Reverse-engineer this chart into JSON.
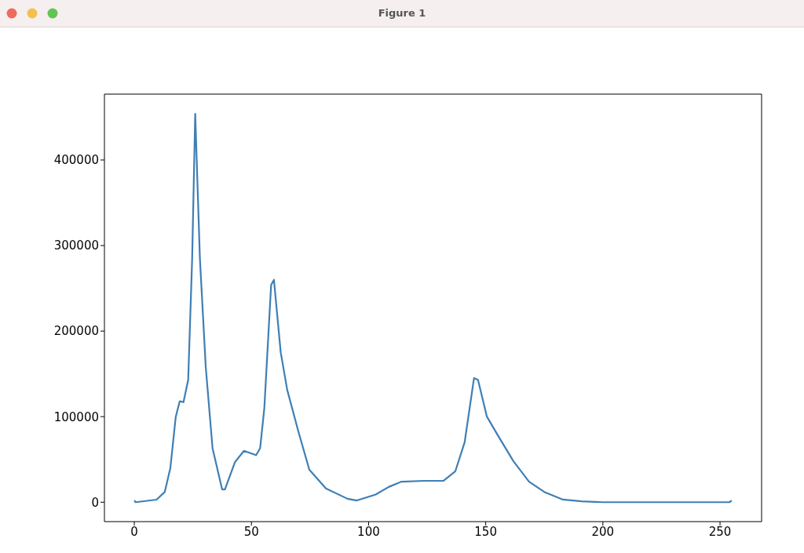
{
  "chart_data": {
    "type": "line",
    "title": "Figure 1",
    "x": [
      0,
      0.6,
      9.5,
      13,
      15.4,
      17.7,
      19.4,
      21,
      23,
      24.7,
      26,
      28,
      30.5,
      33.4,
      37.5,
      38.7,
      43,
      46.8,
      52,
      53.7,
      55.5,
      58.4,
      59.6,
      62.5,
      65.3,
      70,
      74.7,
      81.8,
      91,
      95,
      103,
      108.7,
      114,
      123.6,
      127,
      132,
      137,
      141,
      145,
      146.7,
      150.5,
      155,
      161.8,
      168.5,
      175,
      183,
      191,
      200,
      220,
      240,
      254,
      255
    ],
    "series": [
      {
        "color": "#3f7fb5",
        "values": [
          2000,
          0,
          3000,
          12000,
          40000,
          100000,
          118000,
          117000,
          143000,
          285000,
          454000,
          285000,
          158000,
          63000,
          15000,
          15000,
          47000,
          60000,
          55000,
          63000,
          110000,
          254000,
          260000,
          175000,
          131000,
          83000,
          38000,
          16000,
          4000,
          2000,
          9000,
          18000,
          24000,
          25000,
          25000,
          25000,
          36000,
          70000,
          145000,
          143000,
          100000,
          79000,
          48000,
          24000,
          12000,
          3000,
          1000,
          0,
          0,
          0,
          0,
          2000
        ]
      }
    ],
    "xlim": [
      -12.75,
      267.75
    ],
    "ylim": [
      -22700,
      477000
    ],
    "xticks": [
      0,
      50,
      100,
      150,
      200,
      250
    ],
    "yticks": [
      0,
      100000,
      200000,
      300000,
      400000
    ],
    "grid": false,
    "marker": "none",
    "line_style": "solid"
  }
}
